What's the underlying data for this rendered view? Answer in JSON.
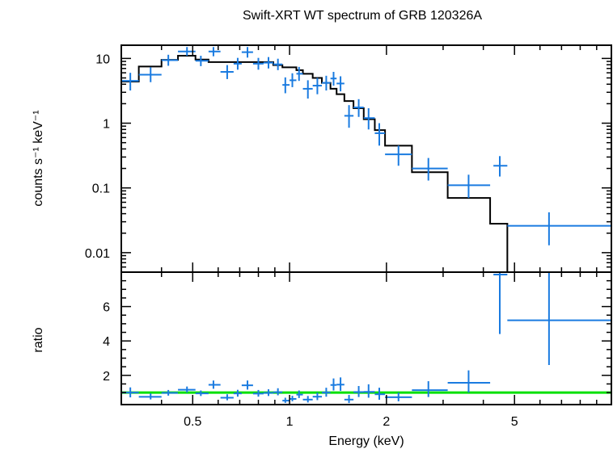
{
  "chart_data": {
    "type": "scatter",
    "title": "Swift-XRT WT spectrum of GRB 120326A",
    "xlabel": "Energy (keV)",
    "x_scale": "log",
    "xlim": [
      0.3,
      10
    ],
    "x_ticks": [
      {
        "value": 0.5,
        "label": "0.5"
      },
      {
        "value": 1,
        "label": "1"
      },
      {
        "value": 2,
        "label": "2"
      },
      {
        "value": 5,
        "label": "5"
      }
    ],
    "colors": {
      "data": "#1a7be0",
      "model": "#000000",
      "unity": "#00e000"
    },
    "spectrum": {
      "ylabel": "counts s⁻¹ keV⁻¹",
      "y_scale": "log",
      "ylim": [
        0.005,
        16
      ],
      "y_ticks": [
        {
          "value": 0.01,
          "label": "0.01"
        },
        {
          "value": 0.1,
          "label": "0.1"
        },
        {
          "value": 1,
          "label": "1"
        },
        {
          "value": 10,
          "label": "10"
        }
      ],
      "data_points": [
        {
          "x": 0.32,
          "xerr": [
            0.3,
            0.34
          ],
          "y": 4.5,
          "yerr": [
            3.2,
            6.0
          ]
        },
        {
          "x": 0.37,
          "xerr": [
            0.34,
            0.4
          ],
          "y": 5.6,
          "yerr": [
            4.3,
            7.3
          ]
        },
        {
          "x": 0.42,
          "xerr": [
            0.4,
            0.45
          ],
          "y": 9.4,
          "yerr": [
            7.7,
            11.4
          ]
        },
        {
          "x": 0.48,
          "xerr": [
            0.45,
            0.51
          ],
          "y": 12.8,
          "yerr": [
            11.0,
            15.0
          ]
        },
        {
          "x": 0.53,
          "xerr": [
            0.51,
            0.56
          ],
          "y": 9.2,
          "yerr": [
            7.6,
            11.0
          ]
        },
        {
          "x": 0.58,
          "xerr": [
            0.56,
            0.61
          ],
          "y": 12.8,
          "yerr": [
            10.8,
            15.0
          ]
        },
        {
          "x": 0.64,
          "xerr": [
            0.61,
            0.67
          ],
          "y": 6.2,
          "yerr": [
            4.8,
            7.9
          ]
        },
        {
          "x": 0.69,
          "xerr": [
            0.67,
            0.71
          ],
          "y": 8.3,
          "yerr": [
            6.7,
            10.2
          ]
        },
        {
          "x": 0.74,
          "xerr": [
            0.71,
            0.77
          ],
          "y": 12.5,
          "yerr": [
            10.3,
            15.0
          ]
        },
        {
          "x": 0.8,
          "xerr": [
            0.77,
            0.83
          ],
          "y": 8.3,
          "yerr": [
            6.7,
            10.2
          ]
        },
        {
          "x": 0.86,
          "xerr": [
            0.83,
            0.89
          ],
          "y": 8.6,
          "yerr": [
            7.0,
            10.5
          ]
        },
        {
          "x": 0.92,
          "xerr": [
            0.89,
            0.95
          ],
          "y": 8.1,
          "yerr": [
            6.6,
            9.9
          ]
        },
        {
          "x": 0.97,
          "xerr": [
            0.95,
            1.0
          ],
          "y": 3.9,
          "yerr": [
            2.9,
            5.1
          ]
        },
        {
          "x": 1.02,
          "xerr": [
            1.0,
            1.05
          ],
          "y": 4.6,
          "yerr": [
            3.6,
            5.9
          ]
        },
        {
          "x": 1.07,
          "xerr": [
            1.05,
            1.1
          ],
          "y": 5.8,
          "yerr": [
            4.5,
            7.4
          ]
        },
        {
          "x": 1.14,
          "xerr": [
            1.1,
            1.18
          ],
          "y": 3.4,
          "yerr": [
            2.4,
            4.6
          ]
        },
        {
          "x": 1.22,
          "xerr": [
            1.18,
            1.26
          ],
          "y": 3.8,
          "yerr": [
            2.8,
            5.0
          ]
        },
        {
          "x": 1.3,
          "xerr": [
            1.26,
            1.34
          ],
          "y": 4.2,
          "yerr": [
            3.2,
            5.4
          ]
        },
        {
          "x": 1.37,
          "xerr": [
            1.34,
            1.4
          ],
          "y": 4.9,
          "yerr": [
            3.8,
            6.2
          ]
        },
        {
          "x": 1.44,
          "xerr": [
            1.4,
            1.48
          ],
          "y": 4.1,
          "yerr": [
            3.1,
            5.3
          ]
        },
        {
          "x": 1.53,
          "xerr": [
            1.48,
            1.58
          ],
          "y": 1.3,
          "yerr": [
            0.85,
            1.9
          ]
        },
        {
          "x": 1.64,
          "xerr": [
            1.58,
            1.7
          ],
          "y": 1.75,
          "yerr": [
            1.25,
            2.35
          ]
        },
        {
          "x": 1.76,
          "xerr": [
            1.7,
            1.84
          ],
          "y": 1.2,
          "yerr": [
            0.8,
            1.7
          ]
        },
        {
          "x": 1.9,
          "xerr": [
            1.84,
            1.98
          ],
          "y": 0.7,
          "yerr": [
            0.45,
            1.0
          ]
        },
        {
          "x": 2.18,
          "xerr": [
            1.98,
            2.4
          ],
          "y": 0.33,
          "yerr": [
            0.22,
            0.45
          ]
        },
        {
          "x": 2.7,
          "xerr": [
            2.4,
            3.1
          ],
          "y": 0.2,
          "yerr": [
            0.13,
            0.29
          ]
        },
        {
          "x": 3.6,
          "xerr": [
            3.1,
            4.2
          ],
          "y": 0.11,
          "yerr": [
            0.07,
            0.16
          ]
        },
        {
          "x": 4.5,
          "xerr": [
            4.3,
            4.75
          ],
          "y": 0.22,
          "yerr": [
            0.15,
            0.31
          ]
        },
        {
          "x": 6.4,
          "xerr": [
            4.75,
            10.0
          ],
          "y": 0.026,
          "yerr": [
            0.013,
            0.042
          ]
        }
      ],
      "model_steps": [
        {
          "x0": 0.3,
          "x1": 0.34,
          "y": 4.4
        },
        {
          "x0": 0.34,
          "x1": 0.4,
          "y": 7.5
        },
        {
          "x0": 0.4,
          "x1": 0.45,
          "y": 9.5
        },
        {
          "x0": 0.45,
          "x1": 0.51,
          "y": 11.0
        },
        {
          "x0": 0.51,
          "x1": 0.56,
          "y": 9.6
        },
        {
          "x0": 0.56,
          "x1": 0.89,
          "y": 8.8
        },
        {
          "x0": 0.89,
          "x1": 0.95,
          "y": 7.9
        },
        {
          "x0": 0.95,
          "x1": 1.05,
          "y": 7.3
        },
        {
          "x0": 1.05,
          "x1": 1.1,
          "y": 6.6
        },
        {
          "x0": 1.1,
          "x1": 1.18,
          "y": 5.8
        },
        {
          "x0": 1.18,
          "x1": 1.26,
          "y": 5.0
        },
        {
          "x0": 1.26,
          "x1": 1.34,
          "y": 4.2
        },
        {
          "x0": 1.34,
          "x1": 1.4,
          "y": 3.4
        },
        {
          "x0": 1.4,
          "x1": 1.48,
          "y": 2.8
        },
        {
          "x0": 1.48,
          "x1": 1.58,
          "y": 2.2
        },
        {
          "x0": 1.58,
          "x1": 1.7,
          "y": 1.7
        },
        {
          "x0": 1.7,
          "x1": 1.84,
          "y": 1.15
        },
        {
          "x0": 1.84,
          "x1": 1.98,
          "y": 0.78
        },
        {
          "x0": 1.98,
          "x1": 2.4,
          "y": 0.45
        },
        {
          "x0": 2.4,
          "x1": 3.1,
          "y": 0.175
        },
        {
          "x0": 3.1,
          "x1": 4.2,
          "y": 0.07
        },
        {
          "x0": 4.2,
          "x1": 4.75,
          "y": 0.028
        },
        {
          "x0": 4.75,
          "x1": 4.75,
          "y": 0.005
        }
      ]
    },
    "ratio": {
      "ylabel": "ratio",
      "y_scale": "linear",
      "ylim": [
        0.3,
        8
      ],
      "y_ticks": [
        {
          "value": 2,
          "label": "2"
        },
        {
          "value": 4,
          "label": "4"
        },
        {
          "value": 6,
          "label": "6"
        }
      ],
      "unity_line": 1,
      "data_points": [
        {
          "x": 0.32,
          "xerr": [
            0.3,
            0.34
          ],
          "y": 1.0,
          "yerr": [
            0.72,
            1.3
          ]
        },
        {
          "x": 0.37,
          "xerr": [
            0.34,
            0.4
          ],
          "y": 0.75,
          "yerr": [
            0.6,
            0.95
          ]
        },
        {
          "x": 0.42,
          "xerr": [
            0.4,
            0.45
          ],
          "y": 0.98,
          "yerr": [
            0.82,
            1.15
          ]
        },
        {
          "x": 0.48,
          "xerr": [
            0.45,
            0.51
          ],
          "y": 1.16,
          "yerr": [
            1.0,
            1.35
          ]
        },
        {
          "x": 0.53,
          "xerr": [
            0.51,
            0.56
          ],
          "y": 0.95,
          "yerr": [
            0.8,
            1.12
          ]
        },
        {
          "x": 0.58,
          "xerr": [
            0.56,
            0.61
          ],
          "y": 1.45,
          "yerr": [
            1.22,
            1.7
          ]
        },
        {
          "x": 0.64,
          "xerr": [
            0.61,
            0.67
          ],
          "y": 0.7,
          "yerr": [
            0.55,
            0.9
          ]
        },
        {
          "x": 0.69,
          "xerr": [
            0.67,
            0.71
          ],
          "y": 0.95,
          "yerr": [
            0.76,
            1.16
          ]
        },
        {
          "x": 0.74,
          "xerr": [
            0.71,
            0.77
          ],
          "y": 1.42,
          "yerr": [
            1.17,
            1.7
          ]
        },
        {
          "x": 0.8,
          "xerr": [
            0.77,
            0.83
          ],
          "y": 0.94,
          "yerr": [
            0.76,
            1.15
          ]
        },
        {
          "x": 0.86,
          "xerr": [
            0.83,
            0.89
          ],
          "y": 0.98,
          "yerr": [
            0.8,
            1.19
          ]
        },
        {
          "x": 0.92,
          "xerr": [
            0.89,
            0.95
          ],
          "y": 1.02,
          "yerr": [
            0.84,
            1.25
          ]
        },
        {
          "x": 0.97,
          "xerr": [
            0.95,
            1.0
          ],
          "y": 0.53,
          "yerr": [
            0.4,
            0.7
          ]
        },
        {
          "x": 1.02,
          "xerr": [
            1.0,
            1.05
          ],
          "y": 0.63,
          "yerr": [
            0.49,
            0.81
          ]
        },
        {
          "x": 1.07,
          "xerr": [
            1.05,
            1.1
          ],
          "y": 0.88,
          "yerr": [
            0.68,
            1.12
          ]
        },
        {
          "x": 1.14,
          "xerr": [
            1.1,
            1.18
          ],
          "y": 0.59,
          "yerr": [
            0.42,
            0.8
          ]
        },
        {
          "x": 1.22,
          "xerr": [
            1.18,
            1.26
          ],
          "y": 0.76,
          "yerr": [
            0.56,
            1.0
          ]
        },
        {
          "x": 1.3,
          "xerr": [
            1.26,
            1.34
          ],
          "y": 1.0,
          "yerr": [
            0.76,
            1.28
          ]
        },
        {
          "x": 1.37,
          "xerr": [
            1.34,
            1.4
          ],
          "y": 1.44,
          "yerr": [
            1.12,
            1.82
          ]
        },
        {
          "x": 1.44,
          "xerr": [
            1.4,
            1.48
          ],
          "y": 1.46,
          "yerr": [
            1.1,
            1.88
          ]
        },
        {
          "x": 1.53,
          "xerr": [
            1.48,
            1.58
          ],
          "y": 0.59,
          "yerr": [
            0.39,
            0.86
          ]
        },
        {
          "x": 1.64,
          "xerr": [
            1.58,
            1.7
          ],
          "y": 1.03,
          "yerr": [
            0.74,
            1.38
          ]
        },
        {
          "x": 1.76,
          "xerr": [
            1.7,
            1.84
          ],
          "y": 1.04,
          "yerr": [
            0.7,
            1.48
          ]
        },
        {
          "x": 1.9,
          "xerr": [
            1.84,
            1.98
          ],
          "y": 0.9,
          "yerr": [
            0.58,
            1.28
          ]
        },
        {
          "x": 2.18,
          "xerr": [
            1.98,
            2.4
          ],
          "y": 0.73,
          "yerr": [
            0.49,
            1.0
          ]
        },
        {
          "x": 2.7,
          "xerr": [
            2.4,
            3.1
          ],
          "y": 1.14,
          "yerr": [
            0.74,
            1.66
          ]
        },
        {
          "x": 3.6,
          "xerr": [
            3.1,
            4.2
          ],
          "y": 1.57,
          "yerr": [
            1.0,
            2.29
          ]
        },
        {
          "x": 4.5,
          "xerr": [
            4.3,
            4.75
          ],
          "y": 7.86,
          "yerr": [
            4.4,
            8.0
          ]
        },
        {
          "x": 6.4,
          "xerr": [
            4.75,
            10.0
          ],
          "y": 5.2,
          "yerr": [
            2.6,
            8.0
          ]
        }
      ]
    }
  }
}
